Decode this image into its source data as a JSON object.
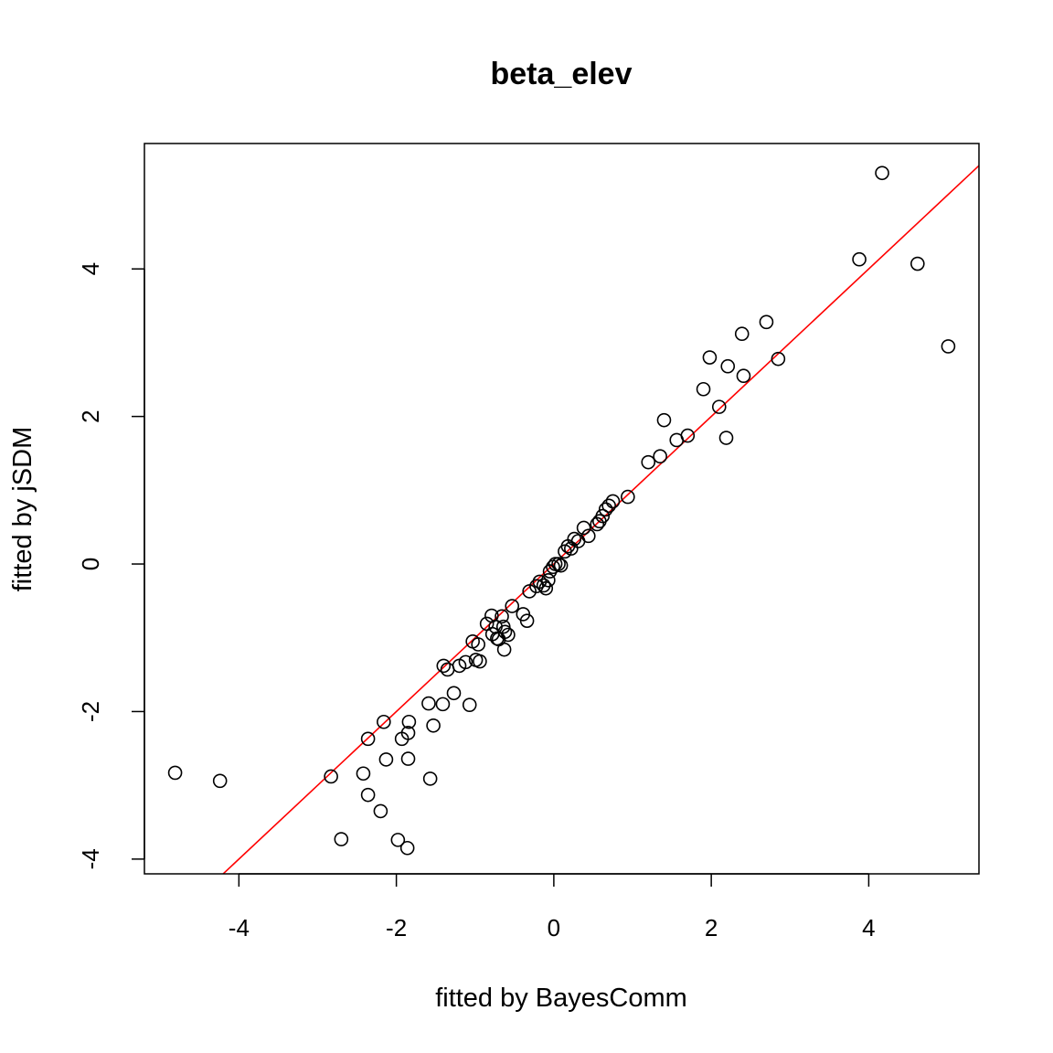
{
  "chart_data": {
    "type": "scatter",
    "title": "beta_elev",
    "xlabel": "fitted by BayesComm",
    "ylabel": "fitted by jSDM",
    "xlim": [
      -5.2,
      5.4
    ],
    "ylim": [
      -4.2,
      5.7
    ],
    "xticks": [
      -4,
      -2,
      0,
      2,
      4
    ],
    "yticks": [
      -4,
      -2,
      0,
      2,
      4
    ],
    "xtick_labels": [
      "-4",
      "-2",
      "0",
      "2",
      "4"
    ],
    "ytick_labels": [
      "-4",
      "-2",
      "0",
      "2",
      "4"
    ],
    "grid": false,
    "reference_line": {
      "intercept": 0,
      "slope": 1,
      "color": "#ff0000"
    },
    "point_color": "#000000",
    "points": [
      [
        -4.81,
        -2.83
      ],
      [
        -4.24,
        -2.94
      ],
      [
        -2.83,
        -2.88
      ],
      [
        -2.7,
        -3.73
      ],
      [
        -2.42,
        -2.84
      ],
      [
        -2.36,
        -3.13
      ],
      [
        -2.36,
        -2.37
      ],
      [
        -2.2,
        -3.35
      ],
      [
        -2.16,
        -2.14
      ],
      [
        -2.13,
        -2.65
      ],
      [
        -1.98,
        -3.74
      ],
      [
        -1.93,
        -2.37
      ],
      [
        -1.86,
        -3.85
      ],
      [
        -1.85,
        -2.64
      ],
      [
        -1.85,
        -2.29
      ],
      [
        -1.84,
        -2.14
      ],
      [
        -1.59,
        -1.89
      ],
      [
        -1.57,
        -2.91
      ],
      [
        -1.53,
        -2.19
      ],
      [
        -1.41,
        -1.9
      ],
      [
        -1.4,
        -1.38
      ],
      [
        -1.35,
        -1.43
      ],
      [
        -1.27,
        -1.75
      ],
      [
        -1.2,
        -1.38
      ],
      [
        -1.12,
        -1.33
      ],
      [
        -1.07,
        -1.91
      ],
      [
        -1.03,
        -1.05
      ],
      [
        -0.99,
        -1.3
      ],
      [
        -0.96,
        -1.09
      ],
      [
        -0.94,
        -1.32
      ],
      [
        -0.85,
        -0.81
      ],
      [
        -0.79,
        -0.7
      ],
      [
        -0.78,
        -0.95
      ],
      [
        -0.74,
        -0.85
      ],
      [
        -0.72,
        -1.01
      ],
      [
        -0.7,
        -1.02
      ],
      [
        -0.66,
        -0.71
      ],
      [
        -0.64,
        -0.85
      ],
      [
        -0.63,
        -1.16
      ],
      [
        -0.62,
        -0.92
      ],
      [
        -0.58,
        -0.96
      ],
      [
        -0.53,
        -0.57
      ],
      [
        -0.39,
        -0.68
      ],
      [
        -0.34,
        -0.77
      ],
      [
        -0.31,
        -0.37
      ],
      [
        -0.22,
        -0.3
      ],
      [
        -0.18,
        -0.24
      ],
      [
        -0.13,
        -0.29
      ],
      [
        -0.1,
        -0.33
      ],
      [
        -0.07,
        -0.22
      ],
      [
        -0.05,
        -0.1
      ],
      [
        -0.01,
        -0.04
      ],
      [
        0.02,
        0.0
      ],
      [
        0.06,
        0.0
      ],
      [
        0.09,
        -0.02
      ],
      [
        0.14,
        0.17
      ],
      [
        0.18,
        0.24
      ],
      [
        0.22,
        0.21
      ],
      [
        0.26,
        0.34
      ],
      [
        0.31,
        0.31
      ],
      [
        0.38,
        0.49
      ],
      [
        0.44,
        0.38
      ],
      [
        0.55,
        0.54
      ],
      [
        0.58,
        0.58
      ],
      [
        0.62,
        0.65
      ],
      [
        0.66,
        0.74
      ],
      [
        0.7,
        0.79
      ],
      [
        0.75,
        0.85
      ],
      [
        0.94,
        0.91
      ],
      [
        1.2,
        1.38
      ],
      [
        1.35,
        1.46
      ],
      [
        1.4,
        1.95
      ],
      [
        1.56,
        1.68
      ],
      [
        1.7,
        1.74
      ],
      [
        1.9,
        2.37
      ],
      [
        1.98,
        2.8
      ],
      [
        2.1,
        2.13
      ],
      [
        2.19,
        1.71
      ],
      [
        2.21,
        2.68
      ],
      [
        2.39,
        3.12
      ],
      [
        2.41,
        2.55
      ],
      [
        2.7,
        3.28
      ],
      [
        2.85,
        2.78
      ],
      [
        3.88,
        4.13
      ],
      [
        4.17,
        5.3
      ],
      [
        4.62,
        4.07
      ],
      [
        5.01,
        2.95
      ]
    ]
  }
}
